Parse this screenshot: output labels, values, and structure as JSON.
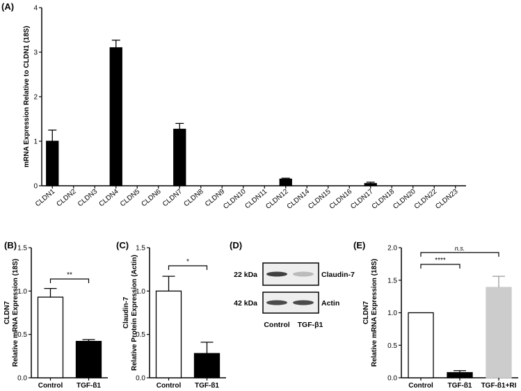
{
  "chart_data": [
    {
      "panel": "(A)",
      "type": "bar",
      "ylabel": "mRNA Expression Relative to CLDN1 (18S)",
      "ylim": [
        0,
        4
      ],
      "yticks": [
        "0",
        "1",
        "2",
        "3",
        "4"
      ],
      "categories": [
        "CLDN1",
        "CLDN2",
        "CLDN3",
        "CLDN4",
        "CLDN5",
        "CLDN6",
        "CLDN7",
        "CLDN8",
        "CLDN9",
        "CLDN10",
        "CLDN11",
        "CLDN12",
        "CLDN14",
        "CLDN15",
        "CLDN16",
        "CLDN17",
        "CLDN18",
        "CLDN20",
        "CLDN22",
        "CLDN23"
      ],
      "values": [
        1.0,
        0,
        0,
        3.1,
        0,
        0,
        1.27,
        0,
        0,
        0,
        0,
        0.15,
        0,
        0,
        0,
        0.05,
        0,
        0,
        0,
        0
      ],
      "errors": [
        0.25,
        0,
        0,
        0.17,
        0,
        0,
        0.13,
        0,
        0,
        0,
        0,
        0.02,
        0,
        0,
        0,
        0.03,
        0,
        0,
        0,
        0
      ],
      "bar_color": "#000000"
    },
    {
      "panel": "(B)",
      "type": "bar",
      "ylabel": "CLDN7",
      "ylabel2": "Relative mRNA Expression (18S)",
      "ylim": [
        0,
        1.5
      ],
      "yticks": [
        "0.0",
        "0.5",
        "1.0",
        "1.5"
      ],
      "categories": [
        "Control",
        "TGF-β1"
      ],
      "values": [
        0.93,
        0.42
      ],
      "errors": [
        0.1,
        0.02
      ],
      "fills": [
        "#ffffff",
        "#000000"
      ],
      "significance": [
        {
          "from": 0,
          "to": 1,
          "label": "**"
        }
      ]
    },
    {
      "panel": "(C)",
      "type": "bar",
      "ylabel": "Claudin-7",
      "ylabel2": "Relative Protein Expression (Actin)",
      "ylim": [
        0,
        1.5
      ],
      "yticks": [
        "0.0",
        "0.5",
        "1.0",
        "1.5"
      ],
      "categories": [
        "Control",
        "TGF-β1"
      ],
      "values": [
        1.0,
        0.28
      ],
      "errors": [
        0.17,
        0.13
      ],
      "fills": [
        "#ffffff",
        "#000000"
      ],
      "significance": [
        {
          "from": 0,
          "to": 1,
          "label": "*"
        }
      ]
    },
    {
      "panel": "(E)",
      "type": "bar",
      "ylabel": "CLDN7",
      "ylabel2": "Relative mRNA Expression (18S)",
      "ylim": [
        0,
        2.0
      ],
      "yticks": [
        "0.0",
        "0.5",
        "1.0",
        "1.5",
        "2.0"
      ],
      "categories": [
        "Control",
        "TGF-β1",
        "TGF-β1+RI"
      ],
      "values": [
        1.0,
        0.08,
        1.39
      ],
      "errors": [
        0,
        0.03,
        0.17
      ],
      "fills": [
        "#ffffff",
        "#000000",
        "#cccccc"
      ],
      "significance": [
        {
          "from": 0,
          "to": 1,
          "label": "****",
          "italic": false
        },
        {
          "from": 0,
          "to": 2,
          "label": "n.s.",
          "italic": true
        }
      ]
    }
  ],
  "blot": {
    "panel": "(D)",
    "rows": [
      {
        "kda": "22 kDa",
        "protein": "Claudin-7"
      },
      {
        "kda": "42 kDa",
        "protein": "Actin"
      }
    ],
    "lanes": [
      "Control",
      "TGF-β1"
    ],
    "band_intensity": [
      [
        0.85,
        0.25
      ],
      [
        0.8,
        0.8
      ]
    ]
  }
}
